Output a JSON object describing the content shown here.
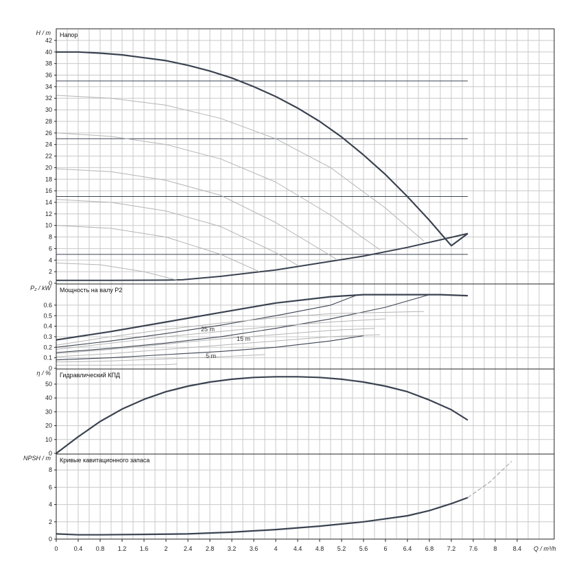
{
  "chart_data": [
    {
      "type": "line",
      "id": "head",
      "title": "Напор",
      "ylabel": "H / m",
      "xlim": [
        0,
        9
      ],
      "ylim": [
        0,
        43
      ],
      "yticks": [
        "0",
        "2",
        "4",
        "6",
        "8",
        "10",
        "12",
        "14",
        "16",
        "18",
        "20",
        "22",
        "24",
        "26",
        "28",
        "30",
        "32",
        "34",
        "36",
        "38",
        "40",
        "42"
      ],
      "series": [
        {
          "role": "main",
          "x": [
            0,
            0.4,
            0.8,
            1.2,
            1.6,
            2,
            2.4,
            2.8,
            3.2,
            3.6,
            4,
            4.4,
            4.8,
            5.2,
            5.6,
            6,
            6.4,
            6.8,
            7.2,
            7.5
          ],
          "y": [
            40,
            40,
            39.8,
            39.5,
            39,
            38.5,
            37.7,
            36.7,
            35.5,
            34,
            32.3,
            30.3,
            28,
            25.3,
            22.2,
            18.8,
            15,
            10.9,
            6.5,
            8.6
          ]
        },
        {
          "role": "system",
          "x": [
            0,
            1,
            2,
            2.3,
            3,
            4,
            5,
            5.6,
            6.4,
            7.5
          ],
          "y": [
            0.5,
            0.5,
            0.55,
            0.6,
            1.2,
            2.3,
            3.8,
            4.7,
            6.2,
            8.6
          ]
        },
        {
          "role": "speed",
          "x": [
            0,
            1,
            2,
            3,
            4,
            5,
            6,
            6.7
          ],
          "y": [
            32.5,
            32,
            30.8,
            28.5,
            25,
            20,
            13,
            7.3
          ]
        },
        {
          "role": "speed",
          "x": [
            0,
            1,
            2,
            3,
            4,
            5,
            5.9
          ],
          "y": [
            26,
            25.4,
            24,
            21.5,
            17.5,
            11.8,
            5.8
          ]
        },
        {
          "role": "speed",
          "x": [
            0,
            1,
            2,
            3,
            4,
            5.1
          ],
          "y": [
            19.8,
            19.3,
            17.8,
            15.2,
            10.5,
            4.2
          ]
        },
        {
          "role": "speed",
          "x": [
            0,
            1,
            2,
            3,
            4,
            4.4
          ],
          "y": [
            14.5,
            14,
            12.5,
            9.8,
            5.3,
            3.1
          ]
        },
        {
          "role": "speed",
          "x": [
            0,
            1,
            2,
            3,
            3.7
          ],
          "y": [
            10,
            9.5,
            8,
            5,
            2
          ]
        },
        {
          "role": "speed",
          "x": [
            0,
            0.8,
            1.6,
            2.2
          ],
          "y": [
            3.5,
            3.2,
            2,
            0.55
          ]
        }
      ],
      "hlines": [
        35,
        25,
        15,
        5
      ]
    },
    {
      "type": "line",
      "id": "power",
      "title": "Мощность на валу P2",
      "ylabel": "P₂ / kW",
      "xlim": [
        0,
        9
      ],
      "ylim": [
        0,
        0.72
      ],
      "yticks": [
        "0",
        "0.1",
        "0.2",
        "0.3",
        "0.4",
        "0.5",
        "0.6"
      ],
      "labels": [
        "25 m",
        "15 m",
        "5 m"
      ],
      "series": [
        {
          "role": "main",
          "x": [
            0,
            1,
            2,
            3,
            4,
            5,
            5.6,
            6,
            7,
            7.5
          ],
          "y": [
            0.27,
            0.35,
            0.44,
            0.53,
            0.62,
            0.68,
            0.7,
            0.7,
            0.7,
            0.69
          ]
        },
        {
          "role": "curve",
          "x": [
            0,
            1,
            2,
            3,
            4,
            5,
            5.5
          ],
          "y": [
            0.2,
            0.26,
            0.33,
            0.41,
            0.5,
            0.6,
            0.7
          ]
        },
        {
          "role": "curve",
          "x": [
            0,
            1,
            2,
            3,
            4,
            5,
            6,
            6.8
          ],
          "y": [
            0.15,
            0.19,
            0.24,
            0.3,
            0.38,
            0.47,
            0.58,
            0.7
          ]
        },
        {
          "role": "curve",
          "x": [
            0,
            1,
            2,
            3,
            4,
            5,
            5.6
          ],
          "y": [
            0.08,
            0.1,
            0.13,
            0.16,
            0.2,
            0.26,
            0.31
          ]
        },
        {
          "role": "thin",
          "x": [
            0,
            1,
            2,
            3,
            4,
            5,
            6.7
          ],
          "y": [
            0.22,
            0.3,
            0.37,
            0.43,
            0.48,
            0.52,
            0.54
          ]
        },
        {
          "role": "thin",
          "x": [
            0,
            1,
            2,
            3,
            4,
            5,
            6
          ],
          "y": [
            0.18,
            0.24,
            0.3,
            0.35,
            0.4,
            0.44,
            0.47
          ]
        },
        {
          "role": "thin",
          "x": [
            0,
            1,
            2,
            3,
            4,
            5,
            5.8
          ],
          "y": [
            0.14,
            0.18,
            0.23,
            0.28,
            0.32,
            0.36,
            0.38
          ]
        },
        {
          "role": "thin",
          "x": [
            0,
            1,
            2,
            3,
            4,
            5,
            5.9
          ],
          "y": [
            0.11,
            0.14,
            0.18,
            0.22,
            0.26,
            0.3,
            0.32
          ]
        },
        {
          "role": "thin",
          "x": [
            0,
            1,
            2,
            3,
            3.8
          ],
          "y": [
            0.06,
            0.07,
            0.09,
            0.11,
            0.13
          ]
        },
        {
          "role": "thin",
          "x": [
            0,
            1,
            2,
            2.2
          ],
          "y": [
            0.03,
            0.03,
            0.035,
            0.04
          ]
        }
      ]
    },
    {
      "type": "line",
      "id": "efficiency",
      "title": "Гидравлический КПД",
      "ylabel": "η / %",
      "xlim": [
        0,
        9
      ],
      "ylim": [
        0,
        60
      ],
      "yticks": [
        "0",
        "10",
        "20",
        "30",
        "40",
        "50"
      ],
      "series": [
        {
          "role": "main",
          "x": [
            0,
            0.4,
            0.8,
            1.2,
            1.6,
            2,
            2.4,
            2.8,
            3.2,
            3.6,
            4,
            4.4,
            4.8,
            5.2,
            5.6,
            6,
            6.4,
            6.8,
            7.2,
            7.5
          ],
          "y": [
            0,
            12,
            23,
            32,
            39,
            44.5,
            48.5,
            51.5,
            53.5,
            54.8,
            55.3,
            55.3,
            54.8,
            53.5,
            51.5,
            48.5,
            44.5,
            38.5,
            31.5,
            24
          ]
        }
      ]
    },
    {
      "type": "line",
      "id": "npsh",
      "title": "Кривые кавитационного запаса",
      "ylabel": "NPSH / m",
      "xlabel": "Q / m³/h",
      "xlim": [
        0,
        9
      ],
      "ylim": [
        0,
        9.5
      ],
      "yticks": [
        "0",
        "2",
        "4",
        "6",
        "8"
      ],
      "xticks": [
        "0",
        "0.4",
        "0.8",
        "1.2",
        "1.6",
        "2",
        "2.4",
        "2.8",
        "3.2",
        "3.6",
        "4",
        "4.4",
        "4.8",
        "5.2",
        "5.6",
        "6",
        "6.4",
        "6.8",
        "7.2",
        "7.6",
        "8",
        "8.4"
      ],
      "series": [
        {
          "role": "main",
          "x": [
            0,
            0.4,
            0.8,
            1.6,
            2.4,
            3.2,
            4,
            4.8,
            5.6,
            6.4,
            6.8,
            7.2,
            7.5
          ],
          "y": [
            0.6,
            0.5,
            0.5,
            0.55,
            0.6,
            0.8,
            1.1,
            1.5,
            2,
            2.7,
            3.3,
            4.1,
            4.8
          ]
        },
        {
          "role": "extension",
          "x": [
            7.5,
            7.9,
            8.3
          ],
          "y": [
            4.8,
            6.6,
            9
          ]
        }
      ]
    }
  ],
  "colors": {
    "main": "#3a4250",
    "curve": "#3a4250",
    "thin": "#b4b4b4",
    "grid": "#c8c8c8",
    "frame": "#222222"
  }
}
